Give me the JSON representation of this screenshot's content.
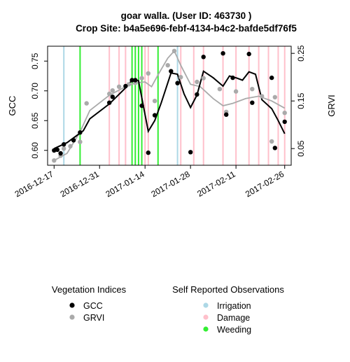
{
  "chart_data": {
    "type": "line",
    "title_line1": "goar walla. (User ID: 463730 )",
    "title_line2": "Crop Site: b4a5e696-febf-4134-b4c2-bafde5df76f5",
    "ylabel_left": "GCC",
    "ylabel_right": "GRVI",
    "x_range": [
      "2016-12-15",
      "2017-02-28"
    ],
    "x_ticks": [
      "2016-12-17",
      "2016-12-31",
      "2017-01-14",
      "2017-01-28",
      "2017-02-11",
      "2017-02-26"
    ],
    "gcc_axis": {
      "range": [
        0.575,
        0.775
      ],
      "ticks": [
        "0.60",
        "0.65",
        "0.70",
        "0.75"
      ]
    },
    "grvi_axis": {
      "range": [
        0.015,
        0.265
      ],
      "ticks": [
        "0.05",
        "0.15",
        "0.25"
      ]
    },
    "grid": false,
    "series": [
      {
        "name": "GCC",
        "color": "#000000",
        "points": [
          {
            "x": "2016-12-17",
            "y": 0.6
          },
          {
            "x": "2016-12-18",
            "y": 0.601
          },
          {
            "x": "2016-12-19",
            "y": 0.595
          },
          {
            "x": "2016-12-20",
            "y": 0.61
          },
          {
            "x": "2016-12-23",
            "y": 0.617
          },
          {
            "x": "2016-12-25",
            "y": 0.63
          },
          {
            "x": "2017-01-03",
            "y": 0.68
          },
          {
            "x": "2017-01-04",
            "y": 0.69
          },
          {
            "x": "2017-01-08",
            "y": 0.708
          },
          {
            "x": "2017-01-10",
            "y": 0.718
          },
          {
            "x": "2017-01-11",
            "y": 0.718
          },
          {
            "x": "2017-01-13",
            "y": 0.675
          },
          {
            "x": "2017-01-15",
            "y": 0.596
          },
          {
            "x": "2017-01-17",
            "y": 0.659
          },
          {
            "x": "2017-01-22",
            "y": 0.733
          },
          {
            "x": "2017-01-24",
            "y": 0.713
          },
          {
            "x": "2017-01-28",
            "y": 0.597
          },
          {
            "x": "2017-01-30",
            "y": 0.694
          },
          {
            "x": "2017-02-01",
            "y": 0.757
          },
          {
            "x": "2017-02-07",
            "y": 0.763
          },
          {
            "x": "2017-02-08",
            "y": 0.66
          },
          {
            "x": "2017-02-10",
            "y": 0.722
          },
          {
            "x": "2017-02-15",
            "y": 0.762
          },
          {
            "x": "2017-02-16",
            "y": 0.68
          },
          {
            "x": "2017-02-22",
            "y": 0.722
          },
          {
            "x": "2017-02-23",
            "y": 0.604
          },
          {
            "x": "2017-02-26",
            "y": 0.648
          }
        ],
        "smooth": [
          {
            "x": "2016-12-17",
            "y": 0.603
          },
          {
            "x": "2016-12-21",
            "y": 0.613
          },
          {
            "x": "2016-12-26",
            "y": 0.633
          },
          {
            "x": "2016-12-28",
            "y": 0.653
          },
          {
            "x": "2017-01-03",
            "y": 0.678
          },
          {
            "x": "2017-01-08",
            "y": 0.705
          },
          {
            "x": "2017-01-10",
            "y": 0.718
          },
          {
            "x": "2017-01-12",
            "y": 0.717
          },
          {
            "x": "2017-01-14",
            "y": 0.66
          },
          {
            "x": "2017-01-15",
            "y": 0.632
          },
          {
            "x": "2017-01-17",
            "y": 0.65
          },
          {
            "x": "2017-01-19",
            "y": 0.68
          },
          {
            "x": "2017-01-22",
            "y": 0.73
          },
          {
            "x": "2017-01-24",
            "y": 0.728
          },
          {
            "x": "2017-01-26",
            "y": 0.695
          },
          {
            "x": "2017-01-28",
            "y": 0.672
          },
          {
            "x": "2017-01-30",
            "y": 0.693
          },
          {
            "x": "2017-02-01",
            "y": 0.733
          },
          {
            "x": "2017-02-04",
            "y": 0.722
          },
          {
            "x": "2017-02-07",
            "y": 0.708
          },
          {
            "x": "2017-02-09",
            "y": 0.725
          },
          {
            "x": "2017-02-11",
            "y": 0.722
          },
          {
            "x": "2017-02-13",
            "y": 0.718
          },
          {
            "x": "2017-02-15",
            "y": 0.732
          },
          {
            "x": "2017-02-17",
            "y": 0.728
          },
          {
            "x": "2017-02-19",
            "y": 0.685
          },
          {
            "x": "2017-02-22",
            "y": 0.67
          },
          {
            "x": "2017-02-24",
            "y": 0.65
          },
          {
            "x": "2017-02-26",
            "y": 0.628
          }
        ]
      },
      {
        "name": "GRVI",
        "color": "#aaaaaa",
        "points": [
          {
            "x": "2016-12-17",
            "y": 0.025
          },
          {
            "x": "2016-12-19",
            "y": 0.035
          },
          {
            "x": "2016-12-20",
            "y": 0.05
          },
          {
            "x": "2016-12-22",
            "y": 0.055
          },
          {
            "x": "2016-12-25",
            "y": 0.064
          },
          {
            "x": "2016-12-27",
            "y": 0.145
          },
          {
            "x": "2017-01-03",
            "y": 0.165
          },
          {
            "x": "2017-01-04",
            "y": 0.172
          },
          {
            "x": "2017-01-06",
            "y": 0.18
          },
          {
            "x": "2017-01-09",
            "y": 0.185
          },
          {
            "x": "2017-01-11",
            "y": 0.188
          },
          {
            "x": "2017-01-13",
            "y": 0.198
          },
          {
            "x": "2017-01-15",
            "y": 0.208
          },
          {
            "x": "2017-01-17",
            "y": 0.15
          },
          {
            "x": "2017-01-21",
            "y": 0.225
          },
          {
            "x": "2017-01-23",
            "y": 0.255
          },
          {
            "x": "2017-01-25",
            "y": 0.2
          },
          {
            "x": "2017-01-30",
            "y": 0.19
          },
          {
            "x": "2017-02-01",
            "y": 0.198
          },
          {
            "x": "2017-02-06",
            "y": 0.175
          },
          {
            "x": "2017-02-08",
            "y": 0.127
          },
          {
            "x": "2017-02-11",
            "y": 0.17
          },
          {
            "x": "2017-02-16",
            "y": 0.175
          },
          {
            "x": "2017-02-19",
            "y": 0.16
          },
          {
            "x": "2017-02-22",
            "y": 0.065
          },
          {
            "x": "2017-02-23",
            "y": 0.158
          },
          {
            "x": "2017-02-26",
            "y": 0.125
          }
        ],
        "smooth": [
          {
            "x": "2016-12-17",
            "y": 0.025
          },
          {
            "x": "2016-12-21",
            "y": 0.04
          },
          {
            "x": "2016-12-25",
            "y": 0.085
          },
          {
            "x": "2016-12-28",
            "y": 0.13
          },
          {
            "x": "2017-01-03",
            "y": 0.162
          },
          {
            "x": "2017-01-08",
            "y": 0.18
          },
          {
            "x": "2017-01-11",
            "y": 0.188
          },
          {
            "x": "2017-01-14",
            "y": 0.19
          },
          {
            "x": "2017-01-16",
            "y": 0.18
          },
          {
            "x": "2017-01-18",
            "y": 0.205
          },
          {
            "x": "2017-01-21",
            "y": 0.24
          },
          {
            "x": "2017-01-23",
            "y": 0.255
          },
          {
            "x": "2017-01-25",
            "y": 0.225
          },
          {
            "x": "2017-01-28",
            "y": 0.185
          },
          {
            "x": "2017-01-31",
            "y": 0.18
          },
          {
            "x": "2017-02-04",
            "y": 0.155
          },
          {
            "x": "2017-02-07",
            "y": 0.14
          },
          {
            "x": "2017-02-10",
            "y": 0.145
          },
          {
            "x": "2017-02-14",
            "y": 0.155
          },
          {
            "x": "2017-02-18",
            "y": 0.16
          },
          {
            "x": "2017-02-22",
            "y": 0.15
          },
          {
            "x": "2017-02-26",
            "y": 0.135
          }
        ]
      }
    ],
    "observations": [
      {
        "type": "Irrigation",
        "color": "#add8e6",
        "dates": [
          "2016-12-20",
          "2017-01-24"
        ]
      },
      {
        "type": "Damage",
        "color": "#ffc0cb",
        "dates": [
          "2017-01-03",
          "2017-01-06",
          "2017-01-08",
          "2017-01-14",
          "2017-01-15",
          "2017-01-25",
          "2017-01-29",
          "2017-02-01",
          "2017-02-07",
          "2017-02-11",
          "2017-02-15",
          "2017-02-18",
          "2017-02-21",
          "2017-02-24",
          "2017-02-26"
        ]
      },
      {
        "type": "Weeding",
        "color": "#33ee33",
        "dates": [
          "2016-12-25",
          "2017-01-10",
          "2017-01-11",
          "2017-01-12",
          "2017-01-13",
          "2017-01-18"
        ]
      }
    ]
  },
  "legend_vegetation": {
    "title": "Vegetation Indices",
    "items": [
      {
        "label": "GCC",
        "color": "#000000"
      },
      {
        "label": "GRVI",
        "color": "#aaaaaa"
      }
    ]
  },
  "legend_observations": {
    "title": "Self Reported Observations",
    "items": [
      {
        "label": "Irrigation",
        "color": "#add8e6"
      },
      {
        "label": "Damage",
        "color": "#ffc0cb"
      },
      {
        "label": "Weeding",
        "color": "#33ee33"
      }
    ]
  }
}
